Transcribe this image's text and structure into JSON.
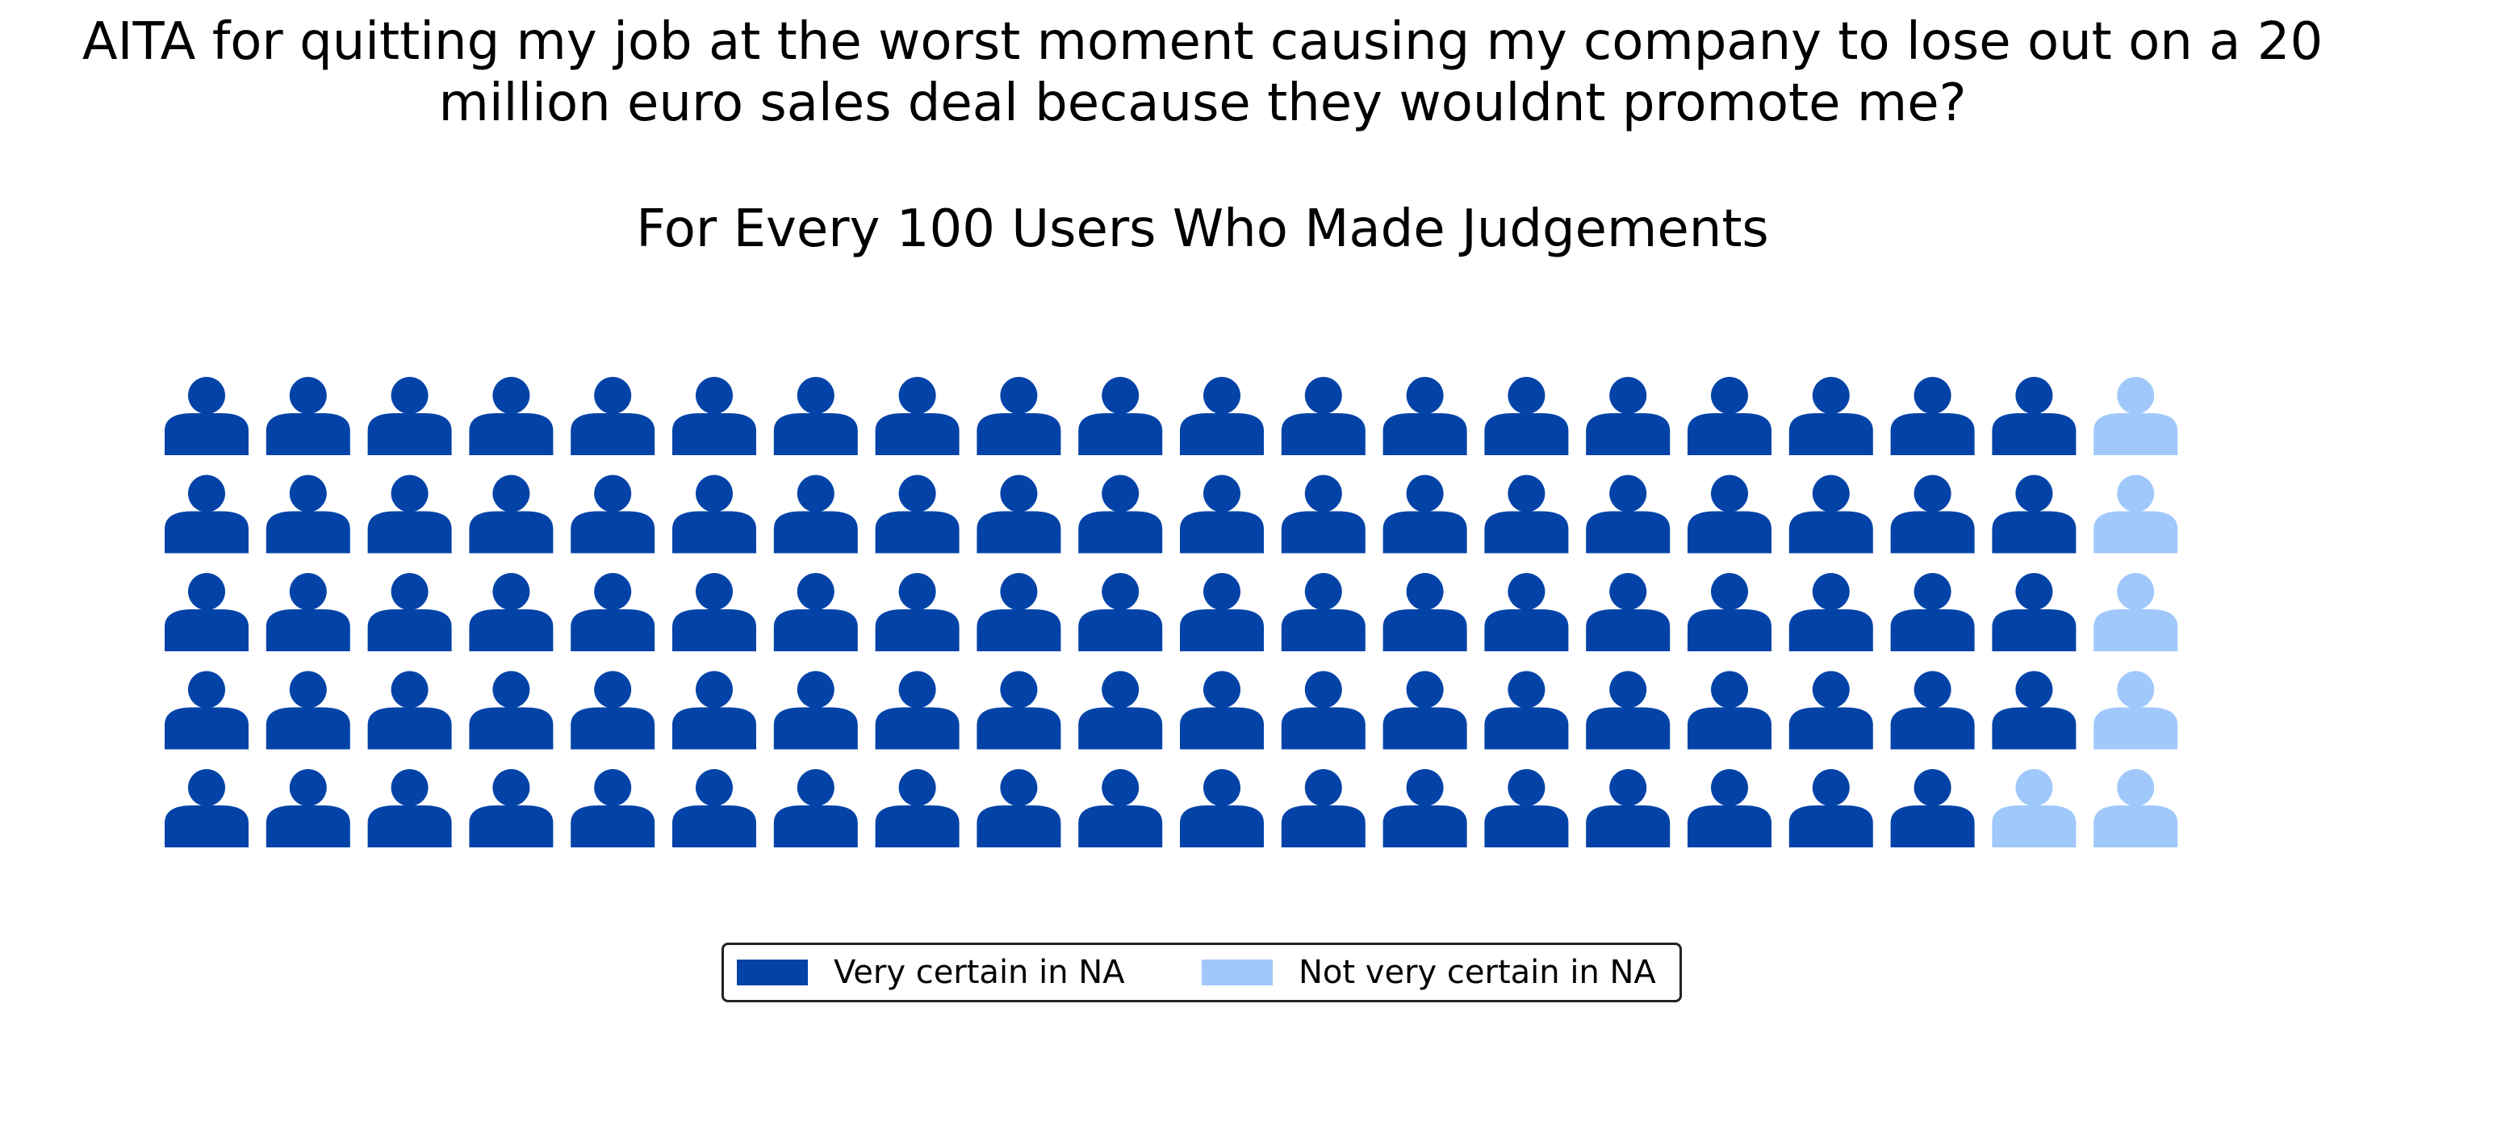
{
  "chart_data": {
    "type": "waffle",
    "title": "AITA for quitting my job at the worst moment causing my company to lose out on a 20\nmillion euro sales deal because they wouldnt promote me?",
    "subtitle": "For Every 100 Users Who Made Judgements",
    "grid": {
      "rows": 5,
      "columns": 20
    },
    "icon": "person-icon",
    "categories": [
      "Very certain in NA",
      "Not very certain in NA"
    ],
    "series": [
      {
        "name": "Very certain in NA",
        "value": 94,
        "color": "#0343a8"
      },
      {
        "name": "Not very certain in NA",
        "value": 6,
        "color": "#a0c8fb"
      }
    ],
    "total": 100,
    "legend_position": "bottom-center"
  }
}
